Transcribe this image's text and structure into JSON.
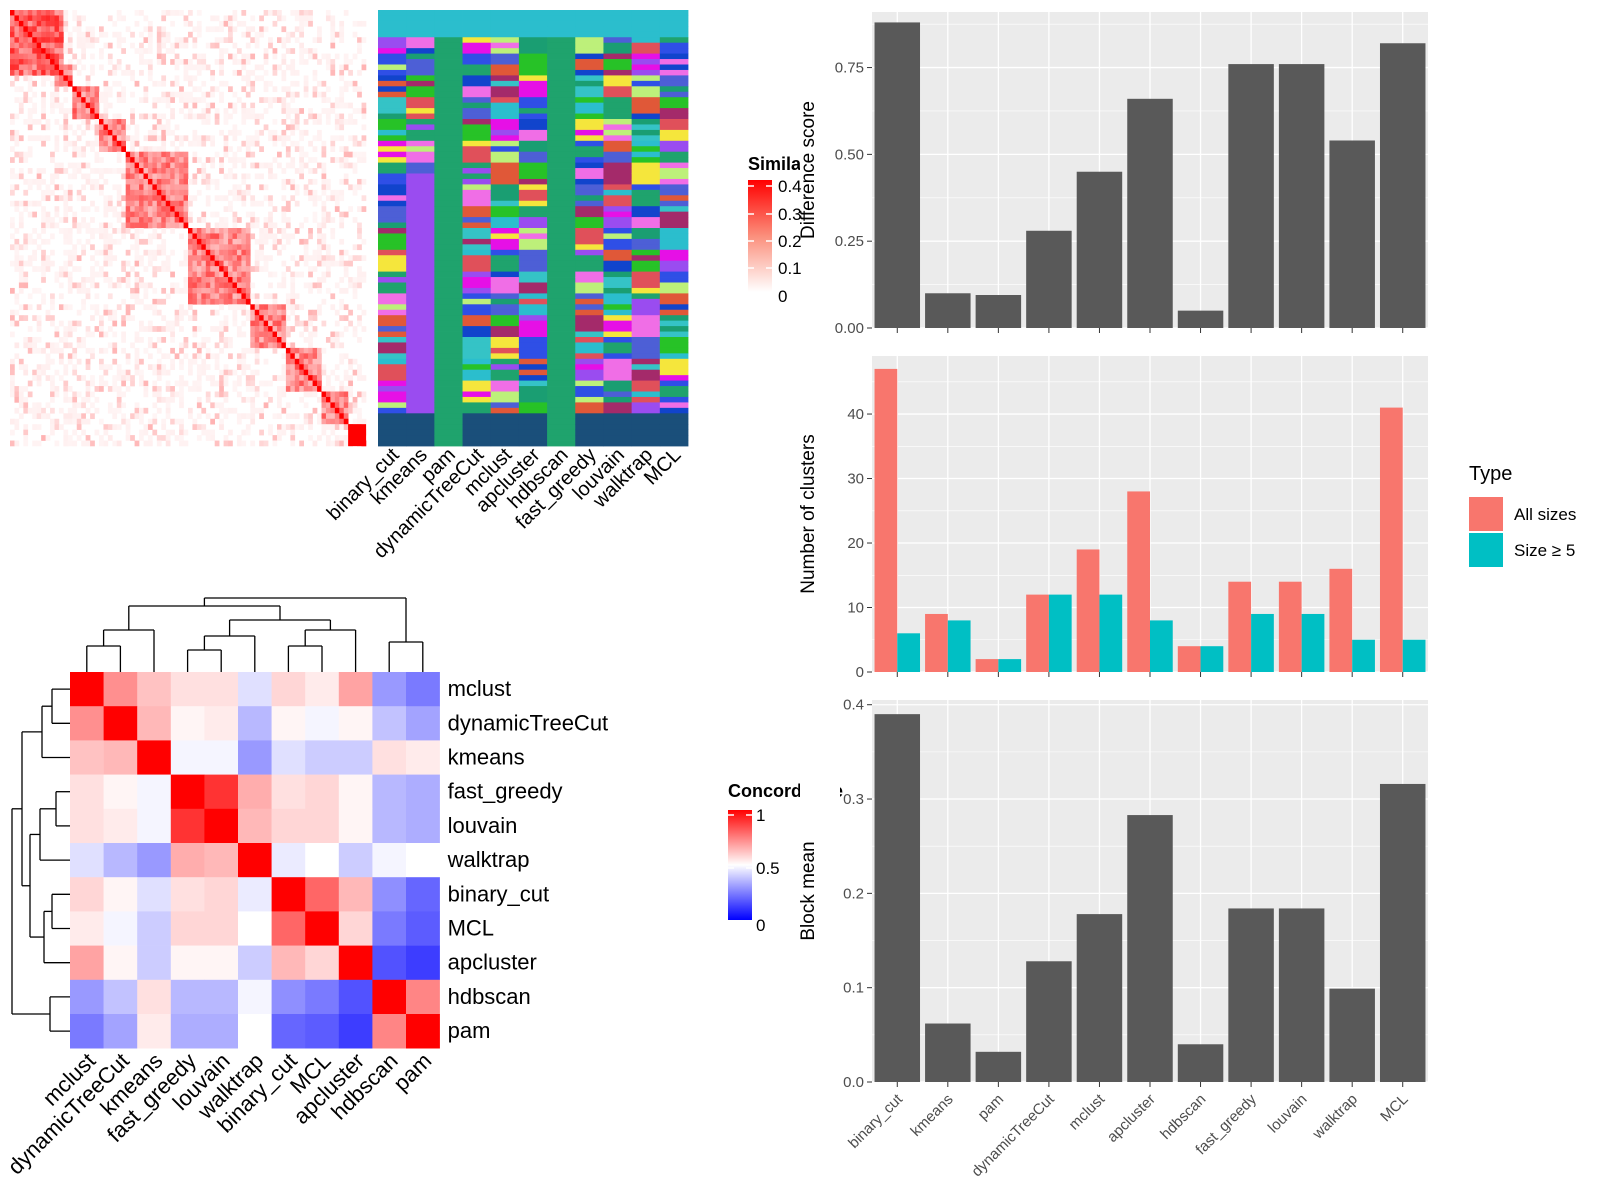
{
  "methods_top": [
    "binary_cut",
    "kmeans",
    "pam",
    "dynamicTreeCut",
    "mclust",
    "apcluster",
    "hdbscan",
    "fast_greedy",
    "louvain",
    "walktrap",
    "MCL"
  ],
  "similarity_legend": {
    "title": "Similarity",
    "ticks": [
      "0.4",
      "0.3",
      "0.2",
      "0.1",
      "0"
    ]
  },
  "concordance_legend": {
    "title": "Concordance",
    "ticks": [
      "1",
      "0.5",
      "0"
    ]
  },
  "chart_data": [
    {
      "type": "heatmap",
      "title": "",
      "rows": [
        "mclust",
        "dynamicTreeCut",
        "kmeans",
        "fast_greedy",
        "louvain",
        "walktrap",
        "binary_cut",
        "MCL",
        "apcluster",
        "hdbscan",
        "pam"
      ],
      "columns": [
        "mclust",
        "dynamicTreeCut",
        "kmeans",
        "fast_greedy",
        "louvain",
        "walktrap",
        "binary_cut",
        "MCL",
        "apcluster",
        "hdbscan",
        "pam"
      ],
      "legend": "Concordance",
      "range": [
        0,
        1
      ],
      "values": [
        [
          1.0,
          0.72,
          0.62,
          0.56,
          0.56,
          0.44,
          0.58,
          0.54,
          0.68,
          0.3,
          0.24
        ],
        [
          0.72,
          1.0,
          0.64,
          0.52,
          0.54,
          0.36,
          0.52,
          0.48,
          0.52,
          0.38,
          0.32
        ],
        [
          0.62,
          0.64,
          1.0,
          0.48,
          0.48,
          0.3,
          0.44,
          0.4,
          0.4,
          0.56,
          0.54
        ],
        [
          0.56,
          0.52,
          0.48,
          1.0,
          0.9,
          0.66,
          0.56,
          0.58,
          0.52,
          0.36,
          0.34
        ],
        [
          0.56,
          0.54,
          0.48,
          0.9,
          1.0,
          0.64,
          0.58,
          0.58,
          0.52,
          0.36,
          0.34
        ],
        [
          0.44,
          0.36,
          0.3,
          0.66,
          0.64,
          1.0,
          0.46,
          0.5,
          0.4,
          0.48,
          0.5
        ],
        [
          0.58,
          0.52,
          0.44,
          0.56,
          0.58,
          0.46,
          1.0,
          0.8,
          0.64,
          0.28,
          0.2
        ],
        [
          0.54,
          0.48,
          0.4,
          0.58,
          0.58,
          0.5,
          0.8,
          1.0,
          0.58,
          0.24,
          0.18
        ],
        [
          0.68,
          0.52,
          0.4,
          0.52,
          0.52,
          0.4,
          0.64,
          0.58,
          1.0,
          0.16,
          0.12
        ],
        [
          0.3,
          0.38,
          0.56,
          0.36,
          0.36,
          0.48,
          0.28,
          0.24,
          0.16,
          1.0,
          0.74
        ],
        [
          0.24,
          0.32,
          0.54,
          0.34,
          0.34,
          0.5,
          0.2,
          0.18,
          0.12,
          0.74,
          1.0
        ]
      ]
    },
    {
      "type": "bar",
      "title": "",
      "xlabel": "",
      "ylabel": "Difference score",
      "categories": [
        "binary_cut",
        "kmeans",
        "pam",
        "dynamicTreeCut",
        "mclust",
        "apcluster",
        "hdbscan",
        "fast_greedy",
        "louvain",
        "walktrap",
        "MCL"
      ],
      "values": [
        0.88,
        0.1,
        0.095,
        0.28,
        0.45,
        0.66,
        0.05,
        0.76,
        0.76,
        0.54,
        0.82
      ],
      "ylim": [
        0,
        0.91
      ],
      "yticks": [
        "0.00",
        "0.25",
        "0.50",
        "0.75"
      ],
      "color": "#595959",
      "grid": true
    },
    {
      "type": "bar",
      "title": "",
      "xlabel": "",
      "ylabel": "Number of clusters",
      "categories": [
        "binary_cut",
        "kmeans",
        "pam",
        "dynamicTreeCut",
        "mclust",
        "apcluster",
        "hdbscan",
        "fast_greedy",
        "louvain",
        "walktrap",
        "MCL"
      ],
      "series": [
        {
          "name": "All sizes",
          "color": "#F8766D",
          "values": [
            47,
            9,
            2,
            12,
            19,
            28,
            4,
            14,
            14,
            16,
            41
          ]
        },
        {
          "name": "Size ≥ 5",
          "color": "#00BFC4",
          "values": [
            6,
            8,
            2,
            12,
            12,
            8,
            4,
            9,
            9,
            5,
            5
          ]
        }
      ],
      "ylim": [
        0,
        49
      ],
      "yticks": [
        "0",
        "10",
        "20",
        "30",
        "40"
      ],
      "legend": {
        "title": "Type",
        "placement": "right"
      },
      "grid": true
    },
    {
      "type": "bar",
      "title": "",
      "xlabel": "",
      "ylabel": "Block mean",
      "categories": [
        "binary_cut",
        "kmeans",
        "pam",
        "dynamicTreeCut",
        "mclust",
        "apcluster",
        "hdbscan",
        "fast_greedy",
        "louvain",
        "walktrap",
        "MCL"
      ],
      "values": [
        0.39,
        0.062,
        0.032,
        0.128,
        0.178,
        0.283,
        0.04,
        0.184,
        0.184,
        0.099,
        0.316
      ],
      "ylim": [
        0,
        0.405
      ],
      "yticks": [
        "0.0",
        "0.1",
        "0.2",
        "0.3",
        "0.4"
      ],
      "color": "#595959",
      "grid": true
    }
  ]
}
